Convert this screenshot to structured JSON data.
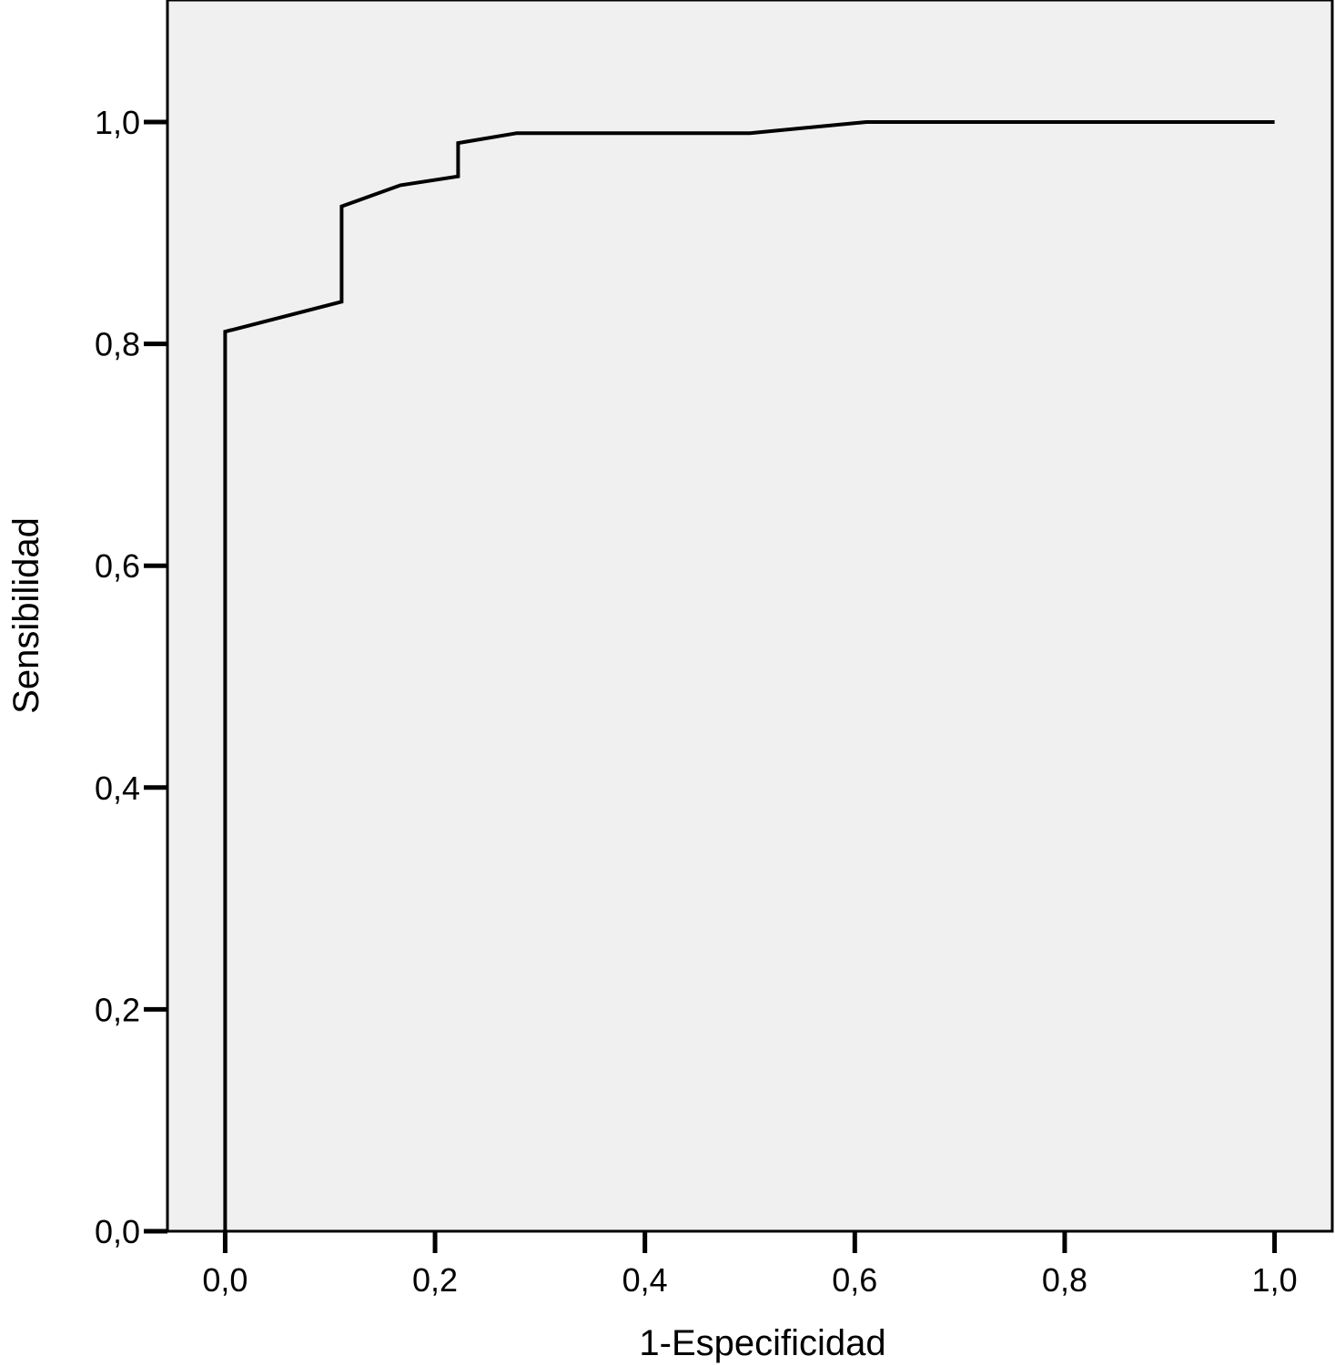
{
  "chart_data": {
    "type": "line",
    "title": "",
    "xlabel": "1-Especificidad",
    "ylabel": "Sensibilidad",
    "xlim": [
      -0.055,
      1.055
    ],
    "ylim": [
      0.0,
      1.11
    ],
    "x_ticks": [
      {
        "value": 0.0,
        "label": "0,0"
      },
      {
        "value": 0.2,
        "label": "0,2"
      },
      {
        "value": 0.4,
        "label": "0,4"
      },
      {
        "value": 0.6,
        "label": "0,6"
      },
      {
        "value": 0.8,
        "label": "0,8"
      },
      {
        "value": 1.0,
        "label": "1,0"
      }
    ],
    "y_ticks": [
      {
        "value": 0.0,
        "label": "0,0"
      },
      {
        "value": 0.2,
        "label": "0,2"
      },
      {
        "value": 0.4,
        "label": "0,4"
      },
      {
        "value": 0.6,
        "label": "0,6"
      },
      {
        "value": 0.8,
        "label": "0,8"
      },
      {
        "value": 1.0,
        "label": "1,0"
      }
    ],
    "grid": false,
    "plot_background": "#f0f0f0",
    "line_color": "#000000",
    "series": [
      {
        "x": [
          0.0,
          0.0,
          0.111,
          0.111,
          0.167,
          0.222,
          0.222,
          0.278,
          0.5,
          0.611,
          1.0
        ],
        "y": [
          0.0,
          0.811,
          0.838,
          0.924,
          0.943,
          0.951,
          0.981,
          0.99,
          0.99,
          1.0,
          1.0
        ]
      }
    ]
  }
}
